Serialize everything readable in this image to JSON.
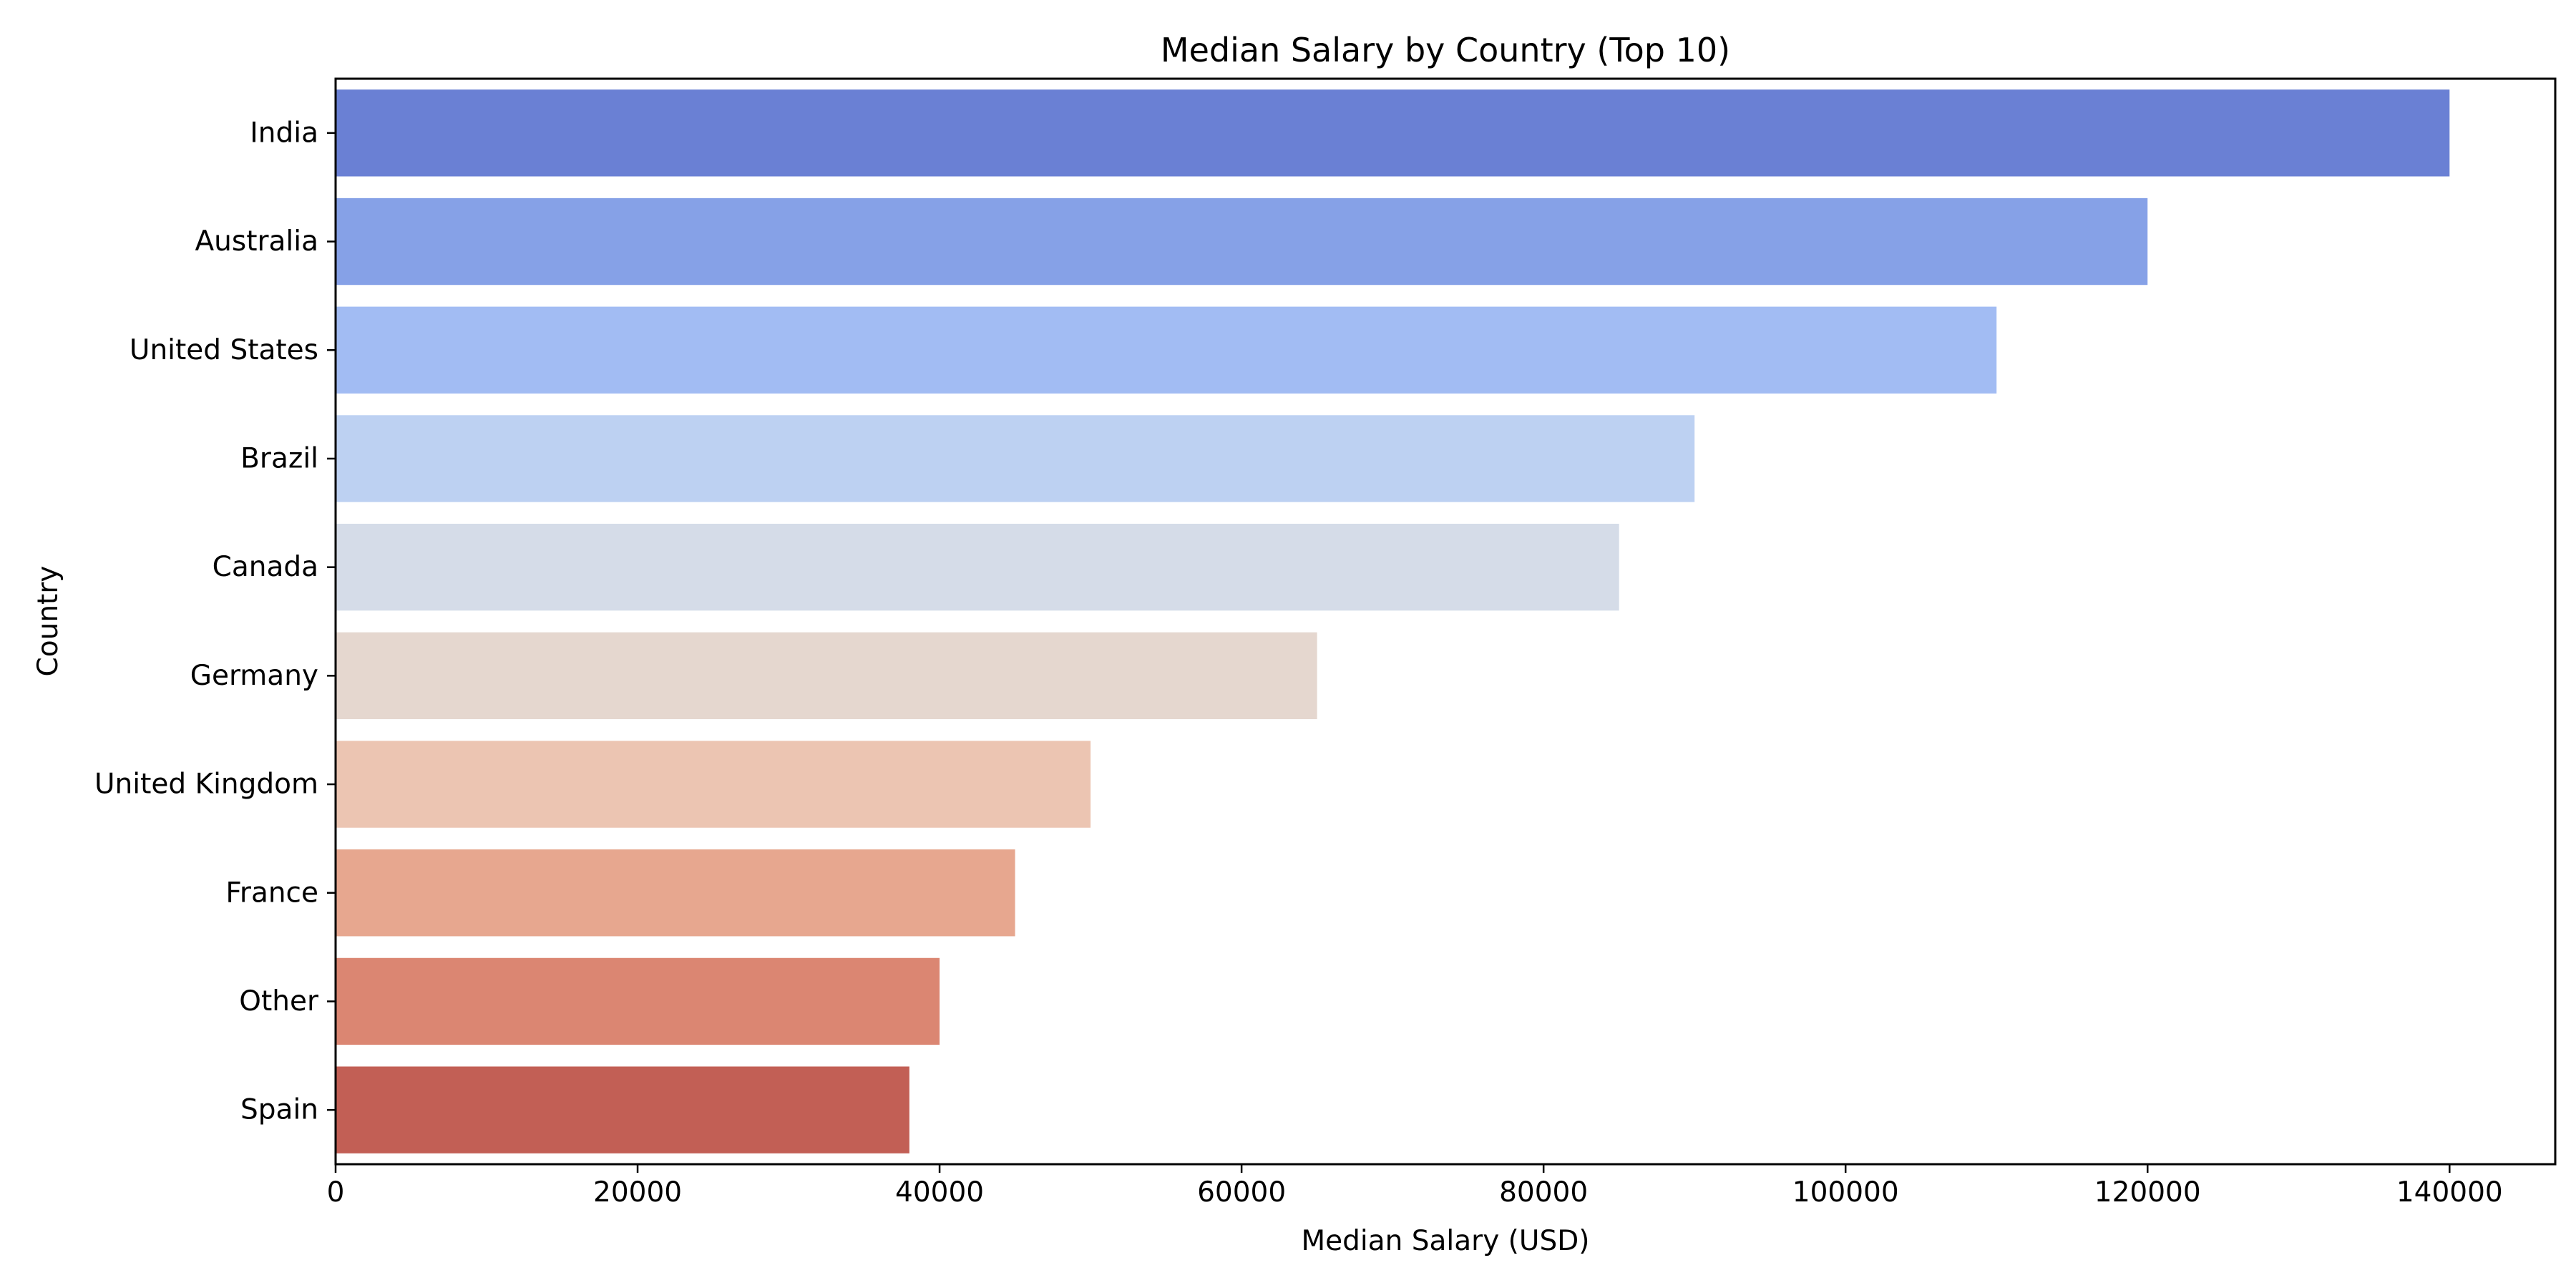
{
  "chart_data": {
    "type": "bar",
    "orientation": "horizontal",
    "title": "Median Salary by Country (Top 10)",
    "xlabel": "Median Salary (USD)",
    "ylabel": "Country",
    "categories": [
      "India",
      "Australia",
      "United States",
      "Brazil",
      "Canada",
      "Germany",
      "United Kingdom",
      "France",
      "Other",
      "Spain"
    ],
    "values": [
      140000,
      120000,
      110000,
      90000,
      85000,
      65000,
      50000,
      45000,
      40000,
      38000
    ],
    "colors": [
      "#6a80d4",
      "#86a1e7",
      "#a2bcf3",
      "#bdd1f2",
      "#d5dce8",
      "#e5d7cf",
      "#ecc5b2",
      "#e7a78f",
      "#db8672",
      "#c25f55"
    ],
    "xlim": [
      0,
      147000
    ],
    "xticks": [
      0,
      20000,
      40000,
      60000,
      80000,
      100000,
      120000,
      140000
    ],
    "grid": false,
    "legend": "none"
  }
}
